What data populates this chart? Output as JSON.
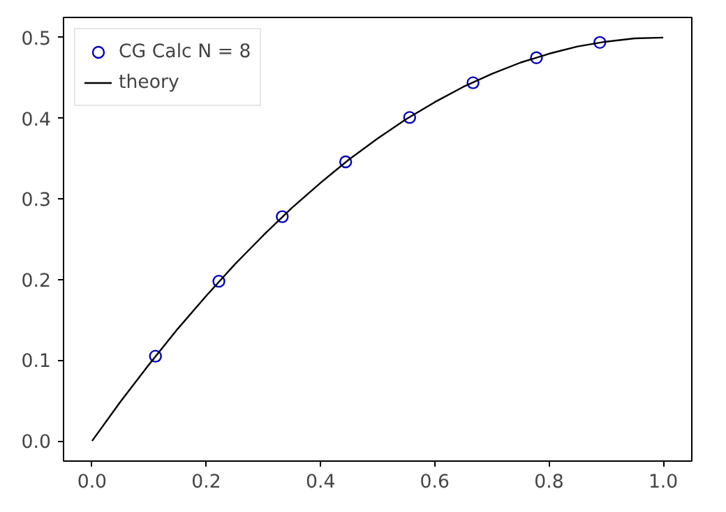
{
  "chart_data": {
    "type": "scatter",
    "xlim": [
      -0.05,
      1.05
    ],
    "ylim": [
      -0.025,
      0.525
    ],
    "xticks": [
      {
        "value": 0,
        "label": "0.0"
      },
      {
        "value": 0.2,
        "label": "0.2"
      },
      {
        "value": 0.4,
        "label": "0.4"
      },
      {
        "value": 0.6,
        "label": "0.6"
      },
      {
        "value": 0.8,
        "label": "0.8"
      },
      {
        "value": 1.0,
        "label": "1.0"
      }
    ],
    "yticks": [
      {
        "value": 0,
        "label": "0.0"
      },
      {
        "value": 0.1,
        "label": "0.1"
      },
      {
        "value": 0.2,
        "label": "0.2"
      },
      {
        "value": 0.3,
        "label": "0.3"
      },
      {
        "value": 0.4,
        "label": "0.4"
      },
      {
        "value": 0.5,
        "label": "0.5"
      }
    ],
    "grid": false,
    "legend": "top left",
    "series": [
      {
        "name": "CG Calc N = 8",
        "marker": "circle",
        "color": "#0000bf",
        "x": [
          0.111,
          0.222,
          0.333,
          0.444,
          0.556,
          0.667,
          0.778,
          0.889
        ],
        "values": [
          0.105,
          0.198,
          0.278,
          0.346,
          0.401,
          0.444,
          0.475,
          0.494
        ]
      },
      {
        "name": "theory",
        "type": "line",
        "line_style": "solid",
        "color": "#000000",
        "x": [
          0,
          0.05,
          0.1,
          0.15,
          0.2,
          0.25,
          0.3,
          0.35,
          0.4,
          0.45,
          0.5,
          0.55,
          0.6,
          0.65,
          0.7,
          0.75,
          0.8,
          0.85,
          0.9,
          0.95,
          1.0
        ],
        "values": [
          0,
          0.049,
          0.095,
          0.139,
          0.18,
          0.219,
          0.255,
          0.289,
          0.32,
          0.349,
          0.375,
          0.399,
          0.42,
          0.439,
          0.455,
          0.469,
          0.48,
          0.489,
          0.495,
          0.499,
          0.5
        ]
      }
    ]
  }
}
